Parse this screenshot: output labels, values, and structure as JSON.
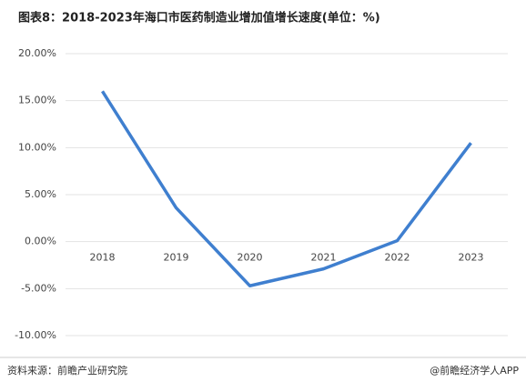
{
  "chart_data": {
    "type": "line",
    "title": "图表8：2018-2023年海口市医药制造业增加值增长速度(单位：%)",
    "categories": [
      "2018",
      "2019",
      "2020",
      "2021",
      "2022",
      "2023"
    ],
    "series": [
      {
        "color": "#3f7fcf",
        "values": [
          16.0,
          3.6,
          -4.7,
          -2.9,
          0.1,
          10.5
        ]
      }
    ],
    "ylim": [
      -10,
      20
    ],
    "yticks": [
      {
        "value": -10,
        "label": "-10.00%"
      },
      {
        "value": -5,
        "label": "-5.00%"
      },
      {
        "value": 0,
        "label": "0.00%"
      },
      {
        "value": 5,
        "label": "5.00%"
      },
      {
        "value": 10,
        "label": "10.00%"
      },
      {
        "value": 15,
        "label": "15.00%"
      },
      {
        "value": 20,
        "label": "20.00%"
      }
    ],
    "grid": true,
    "source": "资料来源：前瞻产业研究院",
    "credit": "@前瞻经济学人APP"
  }
}
